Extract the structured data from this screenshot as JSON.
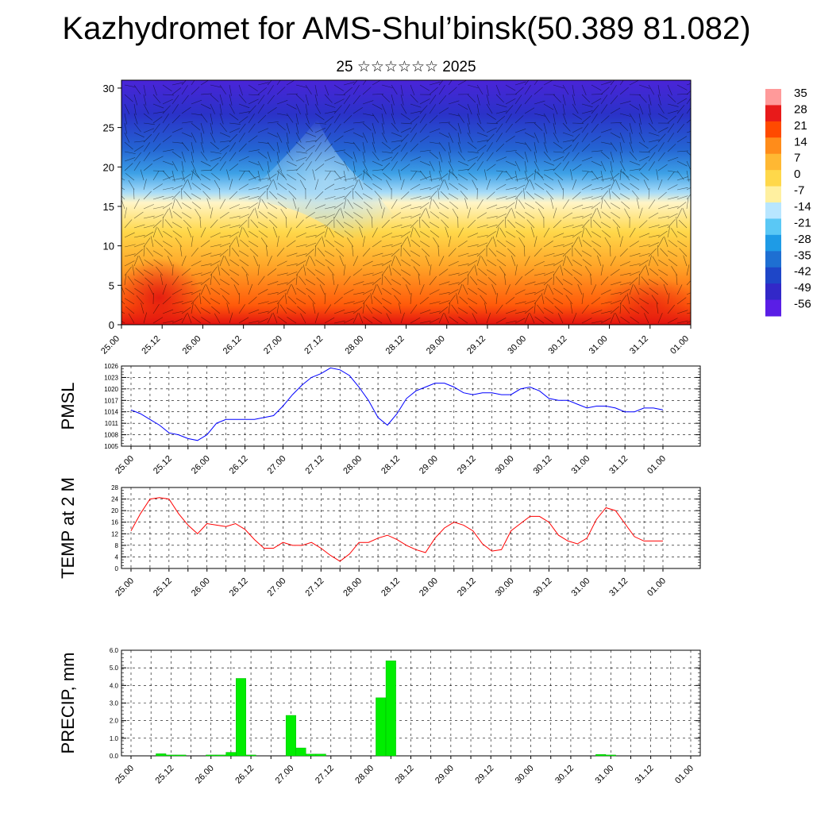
{
  "title": "Kazhydromet for AMS-Shul’binsk(50.389 81.082)",
  "subtitle": "25 ☆☆☆☆☆☆ 2025",
  "time_labels": [
    "25.00",
    "25.12",
    "26.00",
    "26.12",
    "27.00",
    "27.12",
    "28.00",
    "28.12",
    "29.00",
    "29.12",
    "30.00",
    "30.12",
    "31.00",
    "31.12",
    "01.00"
  ],
  "chart_data": [
    {
      "type": "heatmap",
      "name": "cross-section",
      "x_ticks": [
        "25.00",
        "25.12",
        "26.00",
        "26.12",
        "27.00",
        "27.12",
        "28.00",
        "28.12",
        "29.00",
        "29.12",
        "30.00",
        "30.12",
        "31.00",
        "31.12",
        "01.00"
      ],
      "y_ticks": [
        0,
        5,
        10,
        15,
        20,
        25,
        30
      ],
      "ylim": [
        0,
        31
      ],
      "colorbar_labels": [
        "35",
        "28",
        "21",
        "14",
        "7",
        "0",
        "-7",
        "-14",
        "-21",
        "-28",
        "-35",
        "-42",
        "-49",
        "-56"
      ],
      "colorbar_colors": [
        "#ff9a9a",
        "#e81a1a",
        "#ff4a00",
        "#ff8c1a",
        "#ffb833",
        "#ffd84a",
        "#fff0a0",
        "#b8e6ff",
        "#5ac8f5",
        "#1e9be6",
        "#1e6fd2",
        "#1e46c8",
        "#3228c8",
        "#5a1ee6"
      ]
    },
    {
      "type": "line",
      "ylabel": "PMSL",
      "ylim": [
        1005,
        1026
      ],
      "yticks": [
        1005,
        1008,
        1011,
        1014,
        1017,
        1020,
        1023,
        1026
      ],
      "color": "#0000ff",
      "x": [
        0,
        3,
        6,
        9,
        12,
        15,
        18,
        21,
        24,
        27,
        30,
        33,
        36,
        39,
        42,
        45,
        48,
        51,
        54,
        57,
        60,
        63,
        66,
        69,
        72,
        75,
        78,
        81,
        84,
        87,
        90,
        93,
        96,
        99,
        102,
        105,
        108,
        111,
        114,
        117,
        120,
        123,
        126,
        129,
        132,
        135,
        138,
        141,
        144,
        147,
        150,
        153,
        156,
        159,
        162,
        165,
        168
      ],
      "values": [
        1014.5,
        1013.5,
        1012.0,
        1010.5,
        1008.5,
        1008.0,
        1007.0,
        1006.5,
        1008.0,
        1011.0,
        1012.0,
        1012.0,
        1012.0,
        1012.0,
        1012.5,
        1013.0,
        1015.5,
        1018.5,
        1021.0,
        1023.0,
        1024.0,
        1025.5,
        1025.0,
        1023.5,
        1020.5,
        1017.0,
        1012.5,
        1010.5,
        1013.5,
        1017.5,
        1019.5,
        1020.5,
        1021.5,
        1021.5,
        1020.5,
        1019.0,
        1018.5,
        1019.0,
        1019.0,
        1018.5,
        1018.5,
        1020.0,
        1020.5,
        1019.5,
        1017.5,
        1017.0,
        1017.0,
        1016.0,
        1015.0,
        1015.5,
        1015.5,
        1015.0,
        1014.0,
        1014.0,
        1015.0,
        1015.0,
        1014.5
      ]
    },
    {
      "type": "line",
      "ylabel": "TEMP at 2 M",
      "ylim": [
        0,
        28
      ],
      "yticks": [
        0,
        4,
        8,
        12,
        16,
        20,
        24,
        28
      ],
      "color": "#ff0000",
      "x": [
        0,
        3,
        6,
        9,
        12,
        15,
        18,
        21,
        24,
        27,
        30,
        33,
        36,
        39,
        42,
        45,
        48,
        51,
        54,
        57,
        60,
        63,
        66,
        69,
        72,
        75,
        78,
        81,
        84,
        87,
        90,
        93,
        96,
        99,
        102,
        105,
        108,
        111,
        114,
        117,
        120,
        123,
        126,
        129,
        132,
        135,
        138,
        141,
        144,
        147,
        150,
        153,
        156,
        159,
        162,
        165,
        168
      ],
      "values": [
        13.0,
        19.0,
        24.0,
        24.5,
        24.0,
        19.0,
        15.0,
        12.0,
        15.5,
        15.0,
        14.5,
        15.5,
        13.5,
        10.0,
        7.0,
        7.0,
        9.0,
        8.0,
        8.0,
        9.0,
        7.0,
        4.5,
        2.5,
        5.0,
        9.0,
        9.0,
        10.5,
        11.5,
        10.0,
        8.0,
        6.5,
        5.5,
        10.5,
        14.0,
        16.0,
        15.0,
        13.0,
        8.5,
        6.0,
        6.5,
        13.0,
        15.5,
        18.0,
        18.0,
        16.0,
        11.5,
        9.5,
        8.5,
        10.5,
        17.0,
        21.0,
        20.0,
        15.5,
        11.0,
        9.5,
        9.5,
        9.5
      ]
    },
    {
      "type": "bar",
      "ylabel": "PRECIP, mm",
      "ylim": [
        0,
        6
      ],
      "yticks": [
        "0.0",
        "1.0",
        "2.0",
        "3.0",
        "4.0",
        "5.0",
        "6.0"
      ],
      "color": "#00ee00",
      "x": [
        9,
        12,
        15,
        24,
        27,
        30,
        33,
        36,
        48,
        51,
        54,
        57,
        75,
        78,
        141,
        144
      ],
      "values": [
        0.12,
        0.05,
        0.05,
        0.05,
        0.05,
        0.2,
        4.4,
        0.05,
        2.3,
        0.45,
        0.1,
        0.1,
        3.3,
        5.4,
        0.08,
        0.05
      ]
    }
  ]
}
